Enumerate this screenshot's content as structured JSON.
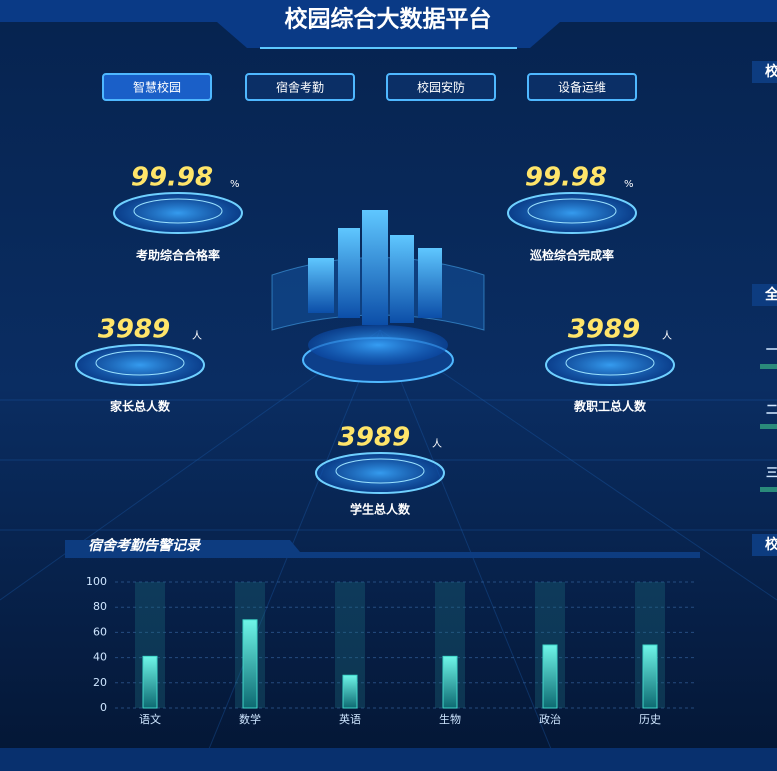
{
  "header": {
    "title": "校园综合大数据平台"
  },
  "nav": {
    "tabs": [
      "智慧校园",
      "宿舍考勤",
      "校园安防",
      "设备运维"
    ]
  },
  "stats": [
    {
      "value": "99.98",
      "unit": "%",
      "label": "考助综合合格率"
    },
    {
      "value": "99.98",
      "unit": "%",
      "label": "巡检综合完成率"
    },
    {
      "value": "3989",
      "unit": "人",
      "label": "家长总人数"
    },
    {
      "value": "3989",
      "unit": "人",
      "label": "教职工总人数"
    },
    {
      "value": "3989",
      "unit": "人",
      "label": "学生总人数"
    }
  ],
  "right_panels": {
    "titles": [
      "校",
      "全",
      "校"
    ],
    "rows": [
      "一",
      "二",
      "三"
    ]
  },
  "chart_data": {
    "type": "bar",
    "title": "宿舍考勤告警记录",
    "categories": [
      "语文",
      "数学",
      "英语",
      "生物",
      "政治",
      "历史"
    ],
    "values": [
      41,
      70,
      26,
      41,
      50,
      50
    ],
    "color": "#3fd6c8",
    "ylim": [
      0,
      100
    ],
    "yticks": [
      0,
      20,
      40,
      60,
      80,
      100
    ],
    "grid": true
  }
}
